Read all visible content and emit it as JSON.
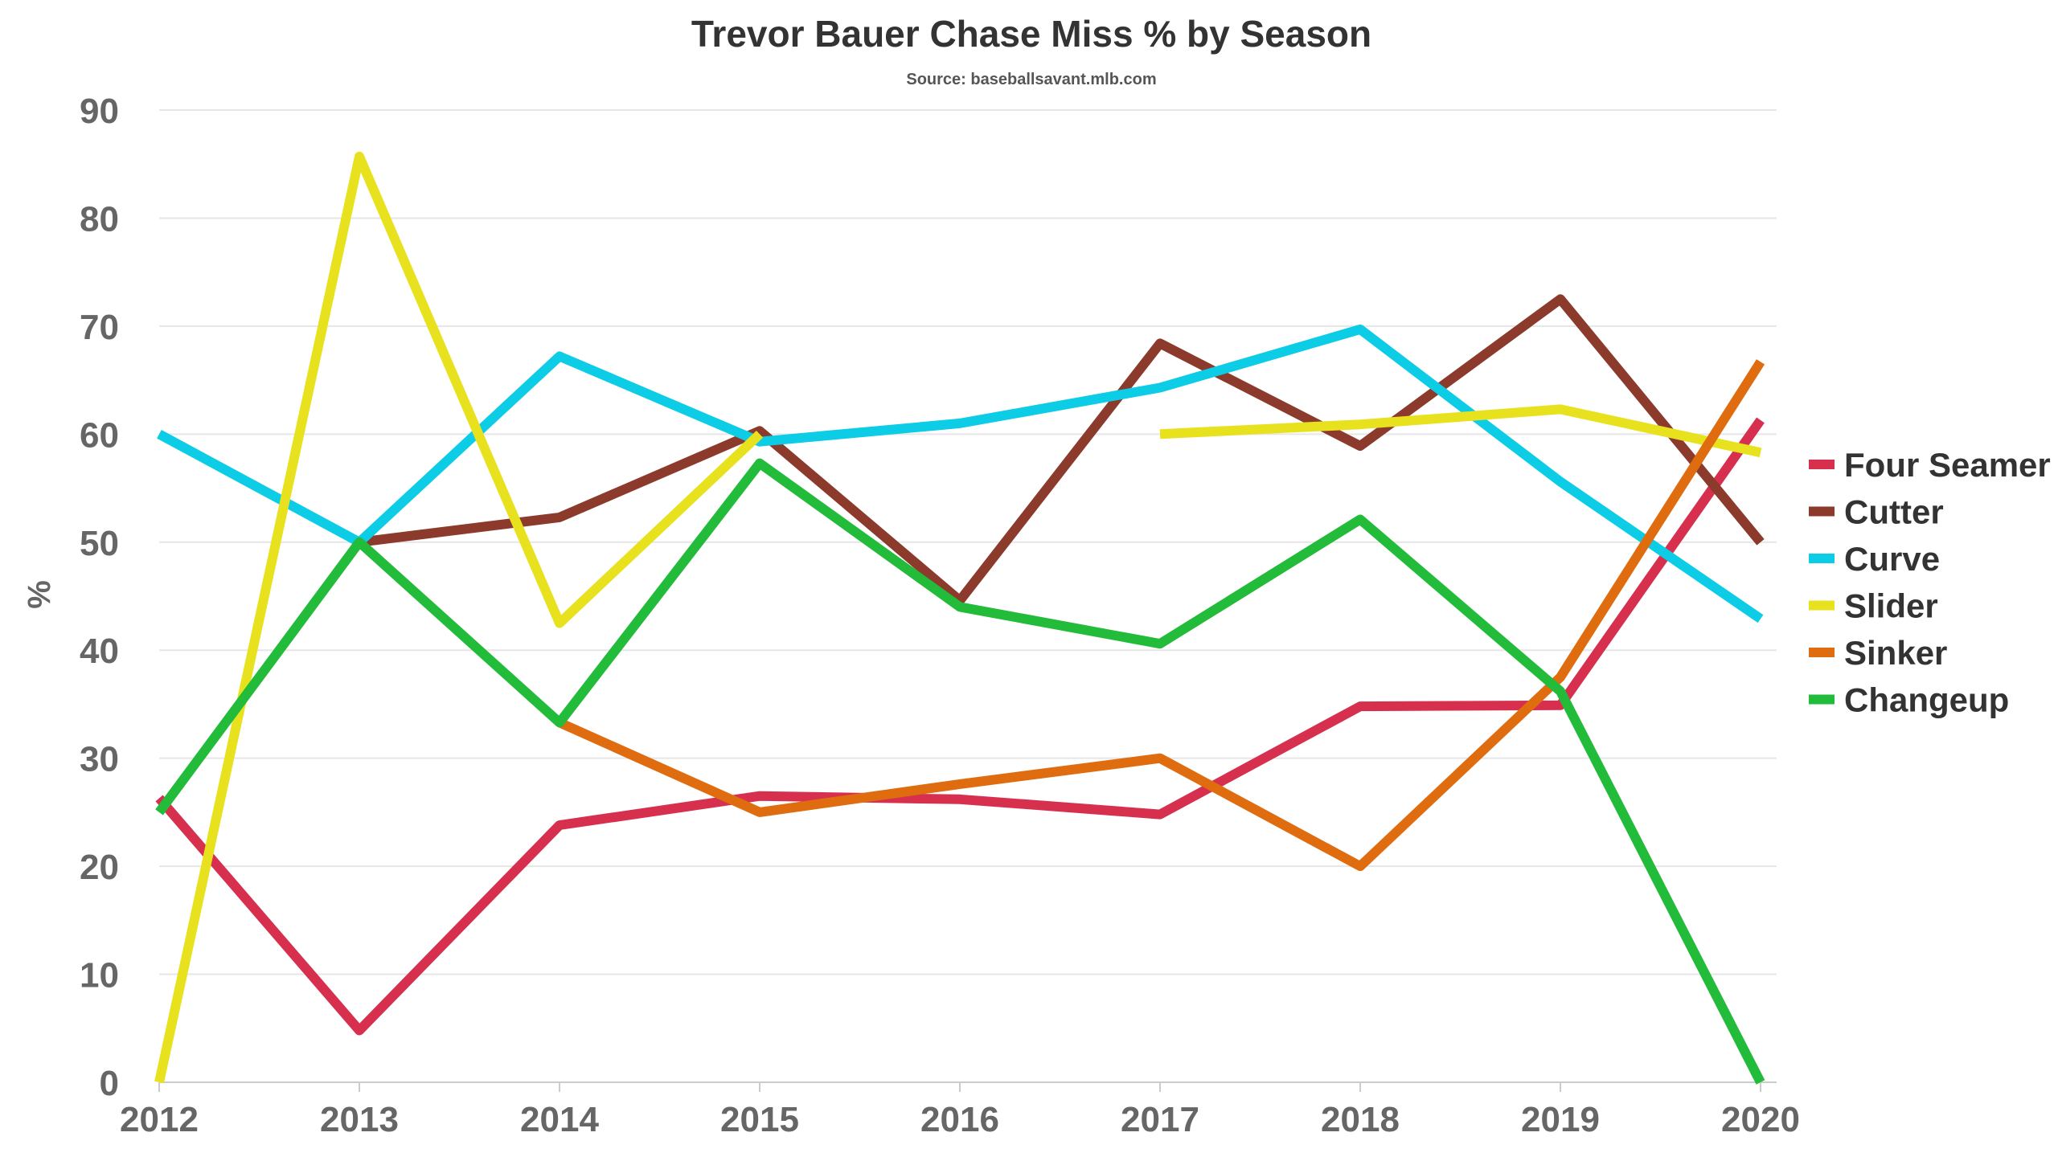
{
  "chart_data": {
    "type": "line",
    "title": "Trevor Bauer Chase Miss % by Season",
    "subtitle": "Source: baseballsavant.mlb.com",
    "xlabel": "",
    "ylabel": "%",
    "categories": [
      "2012",
      "2013",
      "2014",
      "2015",
      "2016",
      "2017",
      "2018",
      "2019",
      "2020"
    ],
    "yticks": [
      0,
      10,
      20,
      30,
      40,
      50,
      60,
      70,
      80,
      90
    ],
    "ylim": [
      0,
      90
    ],
    "grid": true,
    "legend": "right",
    "series": [
      {
        "name": "Four Seamer",
        "color": "#d7304f",
        "values": [
          26.3,
          4.8,
          23.8,
          26.5,
          26.2,
          24.8,
          34.8,
          34.9,
          61.3
        ]
      },
      {
        "name": "Cutter",
        "color": "#8b3a2b",
        "values": [
          null,
          50.0,
          52.3,
          60.3,
          44.6,
          68.4,
          58.9,
          72.5,
          50.0
        ]
      },
      {
        "name": "Curve",
        "color": "#0ccce6",
        "values": [
          60.0,
          50.0,
          67.2,
          59.3,
          61.0,
          64.3,
          69.7,
          55.6,
          42.9
        ]
      },
      {
        "name": "Slider",
        "color": "#e8e21e",
        "values": [
          0,
          85.7,
          42.5,
          60.0,
          null,
          60.0,
          60.9,
          62.3,
          58.3
        ]
      },
      {
        "name": "Sinker",
        "color": "#e06c10",
        "values": [
          null,
          null,
          33.3,
          25.0,
          27.6,
          30.0,
          20.0,
          37.5,
          66.7
        ]
      },
      {
        "name": "Changeup",
        "color": "#22bb3a",
        "values": [
          25.0,
          50.0,
          33.3,
          57.3,
          44.0,
          40.6,
          52.1,
          36.2,
          0
        ]
      }
    ]
  }
}
